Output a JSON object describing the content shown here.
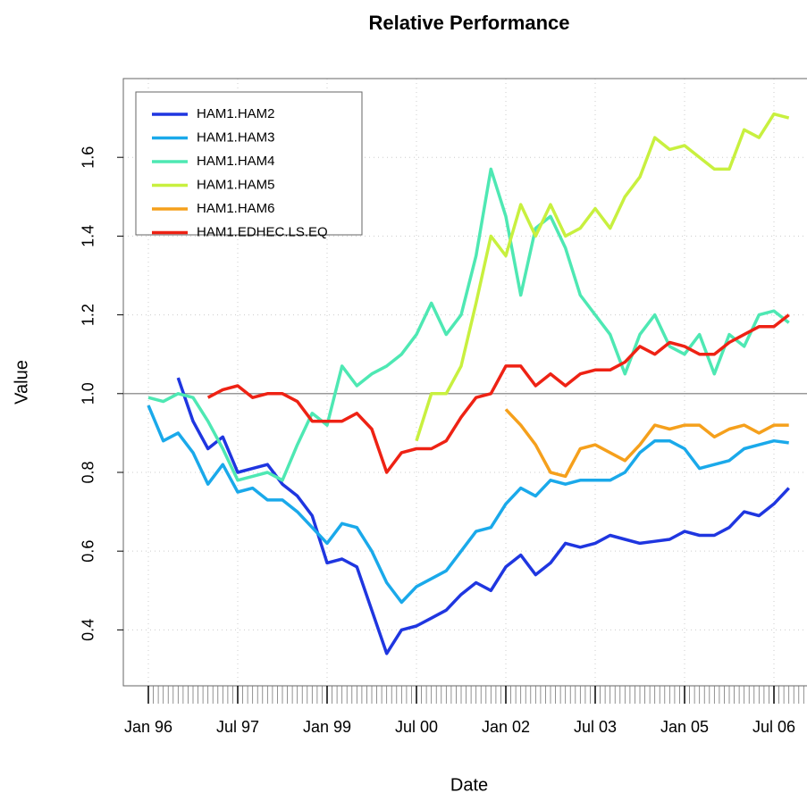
{
  "chart_data": {
    "type": "line",
    "title": "Relative Performance",
    "x_label": "Date",
    "y_label": "Value",
    "x": [
      "Jan 96",
      null,
      null,
      null,
      null,
      null,
      "Jul 97",
      null,
      null,
      null,
      null,
      null,
      "Jan 99",
      null,
      null,
      null,
      null,
      null,
      "Jul 00",
      null,
      null,
      null,
      null,
      null,
      "Jan 02",
      null,
      null,
      null,
      null,
      null,
      "Jul 03",
      null,
      null,
      null,
      null,
      null,
      "Jan 05",
      null,
      null,
      null,
      null,
      null,
      "Jul 06",
      null
    ],
    "ylim": [
      0.258,
      1.8
    ],
    "yticks": [
      0.4,
      0.6,
      0.8,
      {
        "value": 1,
        "label": "1.0"
      },
      1.2,
      1.4,
      1.6
    ],
    "hline": 1,
    "grid": true,
    "legend": "top-left",
    "series": [
      {
        "name": "HAM1.HAM2",
        "color": "#1f36e0",
        "values": [
          null,
          null,
          1.04,
          0.93,
          0.86,
          0.89,
          0.8,
          0.81,
          0.82,
          0.77,
          0.74,
          0.69,
          0.57,
          0.58,
          0.56,
          0.45,
          0.34,
          0.4,
          0.41,
          0.43,
          0.45,
          0.49,
          0.52,
          0.5,
          0.56,
          0.59,
          0.54,
          0.57,
          0.62,
          0.61,
          0.62,
          0.64,
          0.63,
          0.62,
          0.625,
          0.63,
          0.65,
          0.64,
          0.64,
          0.66,
          0.7,
          0.69,
          0.72,
          0.76
        ]
      },
      {
        "name": "HAM1.HAM3",
        "color": "#1aa9ea",
        "values": [
          0.97,
          0.88,
          0.9,
          0.85,
          0.77,
          0.82,
          0.75,
          0.76,
          0.73,
          0.73,
          0.7,
          0.66,
          0.62,
          0.67,
          0.66,
          0.6,
          0.52,
          0.47,
          0.51,
          0.53,
          0.55,
          0.6,
          0.65,
          0.66,
          0.72,
          0.76,
          0.74,
          0.78,
          0.77,
          0.78,
          0.78,
          0.78,
          0.8,
          0.85,
          0.88,
          0.88,
          0.86,
          0.81,
          0.82,
          0.83,
          0.86,
          0.87,
          0.88,
          0.875
        ]
      },
      {
        "name": "HAM1.HAM4",
        "color": "#4ee8b3",
        "values": [
          0.99,
          0.98,
          1.0,
          0.99,
          0.93,
          0.86,
          0.78,
          0.79,
          0.8,
          0.78,
          0.87,
          0.95,
          0.92,
          1.07,
          1.02,
          1.05,
          1.07,
          1.1,
          1.15,
          1.23,
          1.15,
          1.2,
          1.35,
          1.57,
          1.45,
          1.25,
          1.42,
          1.45,
          1.37,
          1.25,
          1.2,
          1.15,
          1.05,
          1.15,
          1.2,
          1.12,
          1.1,
          1.15,
          1.05,
          1.15,
          1.12,
          1.2,
          1.21,
          1.18
        ]
      },
      {
        "name": "HAM1.HAM5",
        "color": "#c8f03f",
        "values": [
          null,
          null,
          null,
          null,
          null,
          null,
          null,
          null,
          null,
          null,
          null,
          null,
          null,
          null,
          null,
          null,
          null,
          null,
          0.88,
          1.0,
          1.0,
          1.07,
          1.23,
          1.4,
          1.35,
          1.48,
          1.4,
          1.48,
          1.4,
          1.42,
          1.47,
          1.42,
          1.5,
          1.55,
          1.65,
          1.62,
          1.63,
          1.6,
          1.57,
          1.57,
          1.67,
          1.65,
          1.71,
          1.7
        ]
      },
      {
        "name": "HAM1.HAM6",
        "color": "#f5a01c",
        "values": [
          null,
          null,
          null,
          null,
          null,
          null,
          null,
          null,
          null,
          null,
          null,
          null,
          null,
          null,
          null,
          null,
          null,
          null,
          null,
          null,
          null,
          null,
          null,
          null,
          0.96,
          0.92,
          0.87,
          0.8,
          0.79,
          0.86,
          0.87,
          0.85,
          0.83,
          0.87,
          0.92,
          0.91,
          0.92,
          0.92,
          0.89,
          0.91,
          0.92,
          0.9,
          0.92,
          0.92
        ]
      },
      {
        "name": "HAM1.EDHEC.LS.EQ",
        "color": "#ee2214",
        "values": [
          null,
          null,
          null,
          null,
          0.99,
          1.01,
          1.02,
          0.99,
          1.0,
          1.0,
          0.98,
          0.93,
          0.93,
          0.93,
          0.95,
          0.91,
          0.8,
          0.85,
          0.86,
          0.86,
          0.88,
          0.94,
          0.99,
          1.0,
          1.07,
          1.07,
          1.02,
          1.05,
          1.02,
          1.05,
          1.06,
          1.06,
          1.08,
          1.12,
          1.1,
          1.13,
          1.12,
          1.1,
          1.1,
          1.13,
          1.15,
          1.17,
          1.17,
          1.2
        ]
      }
    ]
  }
}
